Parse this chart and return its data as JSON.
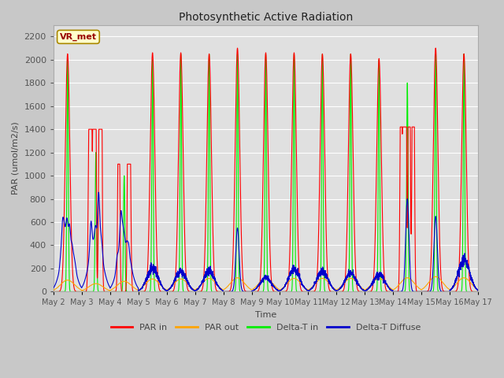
{
  "title": "Photosynthetic Active Radiation",
  "ylabel": "PAR (umol/m2/s)",
  "xlabel": "Time",
  "station_label": "VR_met",
  "ylim": [
    0,
    2300
  ],
  "fig_bg": "#c8c8c8",
  "plot_bg": "#e0e0e0",
  "grid_color": "#ffffff",
  "colors": {
    "PAR_in": "#ff0000",
    "PAR_out": "#ffa500",
    "Delta_T_in": "#00ee00",
    "Delta_T_Diffuse": "#0000cc"
  },
  "legend": [
    "PAR in",
    "PAR out",
    "Delta-T in",
    "Delta-T Diffuse"
  ],
  "x_tick_labels": [
    "May 2",
    "May 3",
    "May 4",
    "May 5",
    "May 6",
    "May 7",
    "May 8",
    "May 9",
    "May 10",
    "May 11",
    "May 12",
    "May 13",
    "May 14",
    "May 15",
    "May 16",
    "May 17"
  ],
  "yticks": [
    0,
    200,
    400,
    600,
    800,
    1000,
    1200,
    1400,
    1600,
    1800,
    2000,
    2200
  ],
  "num_days": 15,
  "pts_per_day": 288
}
